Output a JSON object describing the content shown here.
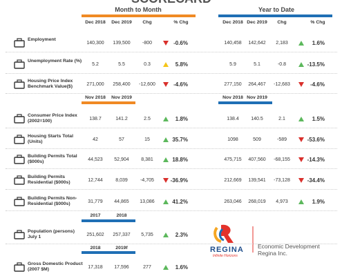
{
  "title": "SCORECARD",
  "logo": {
    "name": "REGINA",
    "tagline": "Infinite Horizons",
    "org": "Economic Development Regina Inc."
  },
  "sections": [
    {
      "group_left": "Month to Month",
      "group_right": "Year to Date",
      "headers_left": [
        "Dec 2018",
        "Dec 2019",
        "Chg",
        "% Chg"
      ],
      "headers_right": [
        "Dec 2018",
        "Dec 2019",
        "Chg",
        "% Chg"
      ],
      "bar_left": "#f08a24",
      "bar_right": "#1f6fb5",
      "rows": [
        {
          "label": "Employment",
          "left": [
            "140,300",
            "139,500",
            "-800",
            "-0.6%"
          ],
          "left_trend": "down",
          "right": [
            "140,458",
            "142,642",
            "2,183",
            "1.6%"
          ],
          "right_trend": "up"
        },
        {
          "label": "Unemployment Rate (%)",
          "left": [
            "5.2",
            "5.5",
            "0.3",
            "5.8%"
          ],
          "left_trend": "warn",
          "right": [
            "5.9",
            "5.1",
            "-0.8",
            "-13.5%"
          ],
          "right_trend": "up"
        },
        {
          "label": "Housing Price Index Benchmark Value($)",
          "left": [
            "271,000",
            "258,400",
            "-12,600",
            "-4.6%"
          ],
          "left_trend": "down",
          "right": [
            "277,150",
            "264,467",
            "-12,683",
            "-4.6%"
          ],
          "right_trend": "down"
        }
      ]
    },
    {
      "headers_left": [
        "Nov 2018",
        "Nov 2019"
      ],
      "headers_right": [
        "Nov 2018",
        "Nov 2019"
      ],
      "bar_left": "#f08a24",
      "bar_right": "#1f6fb5",
      "rows": [
        {
          "label": "Consumer Price Index (2002=100)",
          "left": [
            "138.7",
            "141.2",
            "2.5",
            "1.8%"
          ],
          "left_trend": "up",
          "right": [
            "138.4",
            "140.5",
            "2.1",
            "1.5%"
          ],
          "right_trend": "up"
        },
        {
          "label": "Housing Starts Total (Units)",
          "left": [
            "42",
            "57",
            "15",
            "35.7%"
          ],
          "left_trend": "up",
          "right": [
            "1098",
            "509",
            "-589",
            "-53.6%"
          ],
          "right_trend": "down"
        },
        {
          "label": "Building Permits Total ($000s)",
          "left": [
            "44,523",
            "52,904",
            "8,381",
            "18.8%"
          ],
          "left_trend": "up",
          "right": [
            "475,715",
            "407,560",
            "-68,155",
            "-14.3%"
          ],
          "right_trend": "down"
        },
        {
          "label": "Building Permits Residential ($000s)",
          "left": [
            "12,744",
            "8,039",
            "-4,705",
            "-36.9%"
          ],
          "left_trend": "down",
          "right": [
            "212,669",
            "139,541",
            "-73,128",
            "-34.4%"
          ],
          "right_trend": "down"
        },
        {
          "label": "Building Permits Non-Residential ($000s)",
          "left": [
            "31,779",
            "44,865",
            "13,086",
            "41.2%"
          ],
          "left_trend": "up",
          "right": [
            "263,046",
            "268,019",
            "4,973",
            "1.9%"
          ],
          "right_trend": "up"
        }
      ]
    },
    {
      "headers_left": [
        "2017",
        "2018"
      ],
      "bar_left": "#1f6fb5",
      "rows": [
        {
          "label": "Population (persons) July 1",
          "left": [
            "251,602",
            "257,337",
            "5,735",
            "2.3%"
          ],
          "left_trend": "up"
        }
      ]
    },
    {
      "headers_left": [
        "2018",
        "2019f"
      ],
      "bar_left": "#1f6fb5",
      "rows": [
        {
          "label": "Gross Domestic Product (2007 $M)",
          "left": [
            "17,318",
            "17,596",
            "277",
            "1.6%"
          ],
          "left_trend": "up"
        }
      ]
    }
  ]
}
